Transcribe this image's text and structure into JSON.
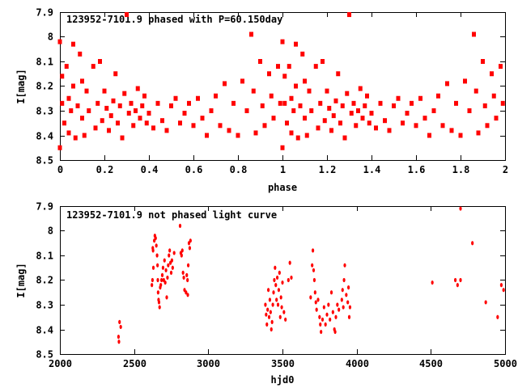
{
  "chart_data": [
    {
      "type": "scatter",
      "title": "123952-7101.9 phased with P=60.150day",
      "xlabel": "phase",
      "ylabel": "I[mag]",
      "xlim": [
        0,
        2
      ],
      "ylim": [
        8.5,
        7.9
      ],
      "y_inverted": true,
      "xticks": [
        "0",
        "0.2",
        "0.4",
        "0.6",
        "0.8",
        "1",
        "1.2",
        "1.4",
        "1.6",
        "1.8",
        "2"
      ],
      "xtick_values": [
        0,
        0.2,
        0.4,
        0.6,
        0.8,
        1,
        1.2,
        1.4,
        1.6,
        1.8,
        2
      ],
      "yticks": [
        "7.9",
        "8",
        "8.1",
        "8.2",
        "8.3",
        "8.4",
        "8.5"
      ],
      "ytick_values": [
        7.9,
        8,
        8.1,
        8.2,
        8.3,
        8.4,
        8.5
      ],
      "series_color": "#ff0000",
      "repeat_phase": true,
      "points": [
        [
          0.0,
          8.02
        ],
        [
          0.0,
          8.45
        ],
        [
          0.01,
          8.16
        ],
        [
          0.01,
          8.27
        ],
        [
          0.02,
          8.35
        ],
        [
          0.03,
          8.12
        ],
        [
          0.04,
          8.25
        ],
        [
          0.04,
          8.39
        ],
        [
          0.05,
          8.3
        ],
        [
          0.06,
          8.2
        ],
        [
          0.06,
          8.03
        ],
        [
          0.07,
          8.41
        ],
        [
          0.08,
          8.28
        ],
        [
          0.09,
          8.07
        ],
        [
          0.1,
          8.33
        ],
        [
          0.1,
          8.18
        ],
        [
          0.11,
          8.4
        ],
        [
          0.12,
          8.22
        ],
        [
          0.13,
          8.3
        ],
        [
          0.15,
          8.12
        ],
        [
          0.16,
          8.37
        ],
        [
          0.17,
          8.27
        ],
        [
          0.18,
          8.1
        ],
        [
          0.19,
          8.34
        ],
        [
          0.2,
          8.22
        ],
        [
          0.21,
          8.29
        ],
        [
          0.22,
          8.38
        ],
        [
          0.23,
          8.32
        ],
        [
          0.24,
          8.26
        ],
        [
          0.25,
          8.15
        ],
        [
          0.26,
          8.35
        ],
        [
          0.27,
          8.28
        ],
        [
          0.28,
          8.41
        ],
        [
          0.29,
          8.23
        ],
        [
          0.3,
          7.91
        ],
        [
          0.31,
          8.31
        ],
        [
          0.32,
          8.27
        ],
        [
          0.33,
          8.36
        ],
        [
          0.34,
          8.3
        ],
        [
          0.35,
          8.21
        ],
        [
          0.36,
          8.33
        ],
        [
          0.37,
          8.28
        ],
        [
          0.38,
          8.24
        ],
        [
          0.39,
          8.35
        ],
        [
          0.4,
          8.31
        ],
        [
          0.42,
          8.37
        ],
        [
          0.44,
          8.27
        ],
        [
          0.46,
          8.34
        ],
        [
          0.48,
          8.38
        ],
        [
          0.5,
          8.28
        ],
        [
          0.52,
          8.25
        ],
        [
          0.54,
          8.35
        ],
        [
          0.56,
          8.31
        ],
        [
          0.58,
          8.27
        ],
        [
          0.6,
          8.36
        ],
        [
          0.62,
          8.25
        ],
        [
          0.64,
          8.33
        ],
        [
          0.66,
          8.4
        ],
        [
          0.68,
          8.3
        ],
        [
          0.7,
          8.24
        ],
        [
          0.72,
          8.36
        ],
        [
          0.74,
          8.19
        ],
        [
          0.76,
          8.38
        ],
        [
          0.78,
          8.27
        ],
        [
          0.8,
          8.4
        ],
        [
          0.82,
          8.18
        ],
        [
          0.84,
          8.3
        ],
        [
          0.86,
          7.99
        ],
        [
          0.87,
          8.22
        ],
        [
          0.88,
          8.39
        ],
        [
          0.9,
          8.1
        ],
        [
          0.91,
          8.28
        ],
        [
          0.92,
          8.36
        ],
        [
          0.94,
          8.15
        ],
        [
          0.95,
          8.24
        ],
        [
          0.96,
          8.33
        ],
        [
          0.98,
          8.12
        ],
        [
          0.99,
          8.27
        ]
      ]
    },
    {
      "type": "scatter",
      "title": "123952-7101.9 not phased light curve",
      "xlabel": "hjd0",
      "ylabel": "I[mag]",
      "xlim": [
        2000,
        5000
      ],
      "ylim": [
        8.5,
        7.9
      ],
      "y_inverted": true,
      "xticks": [
        "2000",
        "2500",
        "3000",
        "3500",
        "4000",
        "4500",
        "5000"
      ],
      "xtick_values": [
        2000,
        2500,
        3000,
        3500,
        4000,
        4500,
        5000
      ],
      "yticks": [
        "7.9",
        "8",
        "8.1",
        "8.2",
        "8.3",
        "8.4",
        "8.5"
      ],
      "ytick_values": [
        7.9,
        8,
        8.1,
        8.2,
        8.3,
        8.4,
        8.5
      ],
      "series_color": "#ff0000",
      "repeat_phase": false,
      "points": [
        [
          2395,
          8.43
        ],
        [
          2398,
          8.45
        ],
        [
          2402,
          8.37
        ],
        [
          2410,
          8.39
        ],
        [
          2620,
          8.22
        ],
        [
          2624,
          8.2
        ],
        [
          2626,
          8.07
        ],
        [
          2628,
          8.08
        ],
        [
          2630,
          8.15
        ],
        [
          2636,
          8.04
        ],
        [
          2640,
          8.02
        ],
        [
          2645,
          8.03
        ],
        [
          2650,
          8.06
        ],
        [
          2655,
          8.1
        ],
        [
          2658,
          8.14
        ],
        [
          2660,
          8.2
        ],
        [
          2662,
          8.25
        ],
        [
          2665,
          8.28
        ],
        [
          2668,
          8.29
        ],
        [
          2672,
          8.31
        ],
        [
          2676,
          8.23
        ],
        [
          2680,
          8.22
        ],
        [
          2685,
          8.2
        ],
        [
          2690,
          8.18
        ],
        [
          2695,
          8.15
        ],
        [
          2700,
          8.2
        ],
        [
          2705,
          8.12
        ],
        [
          2710,
          8.21
        ],
        [
          2715,
          8.16
        ],
        [
          2720,
          8.27
        ],
        [
          2725,
          8.19
        ],
        [
          2730,
          8.14
        ],
        [
          2735,
          8.1
        ],
        [
          2740,
          8.08
        ],
        [
          2745,
          8.13
        ],
        [
          2750,
          8.17
        ],
        [
          2755,
          8.12
        ],
        [
          2760,
          8.15
        ],
        [
          2770,
          8.09
        ],
        [
          2810,
          7.98
        ],
        [
          2815,
          8.09
        ],
        [
          2820,
          8.1
        ],
        [
          2825,
          8.08
        ],
        [
          2830,
          8.17
        ],
        [
          2835,
          8.19
        ],
        [
          2840,
          8.24
        ],
        [
          2850,
          8.25
        ],
        [
          2855,
          8.18
        ],
        [
          2860,
          8.2
        ],
        [
          2862,
          8.26
        ],
        [
          2865,
          8.14
        ],
        [
          2870,
          8.05
        ],
        [
          2875,
          8.07
        ],
        [
          2880,
          8.04
        ],
        [
          3385,
          8.3
        ],
        [
          3390,
          8.34
        ],
        [
          3395,
          8.38
        ],
        [
          3400,
          8.32
        ],
        [
          3405,
          8.24
        ],
        [
          3410,
          8.35
        ],
        [
          3415,
          8.28
        ],
        [
          3420,
          8.33
        ],
        [
          3425,
          8.4
        ],
        [
          3430,
          8.37
        ],
        [
          3435,
          8.3
        ],
        [
          3440,
          8.25
        ],
        [
          3445,
          8.2
        ],
        [
          3450,
          8.15
        ],
        [
          3455,
          8.22
        ],
        [
          3460,
          8.28
        ],
        [
          3465,
          8.19
        ],
        [
          3470,
          8.3
        ],
        [
          3475,
          8.24
        ],
        [
          3480,
          8.17
        ],
        [
          3485,
          8.35
        ],
        [
          3490,
          8.27
        ],
        [
          3495,
          8.31
        ],
        [
          3500,
          8.21
        ],
        [
          3510,
          8.33
        ],
        [
          3520,
          8.36
        ],
        [
          3540,
          8.2
        ],
        [
          3550,
          8.13
        ],
        [
          3560,
          8.19
        ],
        [
          3690,
          8.27
        ],
        [
          3700,
          8.14
        ],
        [
          3705,
          8.08
        ],
        [
          3710,
          8.16
        ],
        [
          3715,
          8.2
        ],
        [
          3720,
          8.25
        ],
        [
          3725,
          8.29
        ],
        [
          3730,
          8.32
        ],
        [
          3740,
          8.28
        ],
        [
          3750,
          8.35
        ],
        [
          3755,
          8.38
        ],
        [
          3760,
          8.41
        ],
        [
          3770,
          8.36
        ],
        [
          3780,
          8.31
        ],
        [
          3790,
          8.38
        ],
        [
          3800,
          8.34
        ],
        [
          3810,
          8.3
        ],
        [
          3820,
          8.36
        ],
        [
          3830,
          8.25
        ],
        [
          3840,
          8.33
        ],
        [
          3850,
          8.4
        ],
        [
          3855,
          8.41
        ],
        [
          3860,
          8.35
        ],
        [
          3870,
          8.3
        ],
        [
          3880,
          8.32
        ],
        [
          3900,
          8.28
        ],
        [
          3905,
          8.24
        ],
        [
          3910,
          8.31
        ],
        [
          3915,
          8.2
        ],
        [
          3920,
          8.14
        ],
        [
          3930,
          8.26
        ],
        [
          3940,
          8.29
        ],
        [
          3945,
          8.23
        ],
        [
          3950,
          8.35
        ],
        [
          3955,
          8.31
        ],
        [
          4510,
          8.21
        ],
        [
          4665,
          8.2
        ],
        [
          4680,
          8.22
        ],
        [
          4700,
          8.2
        ],
        [
          4700,
          7.91
        ],
        [
          4780,
          8.05
        ],
        [
          4870,
          8.29
        ],
        [
          4950,
          8.35
        ],
        [
          4975,
          8.22
        ],
        [
          4990,
          8.24
        ]
      ]
    }
  ]
}
